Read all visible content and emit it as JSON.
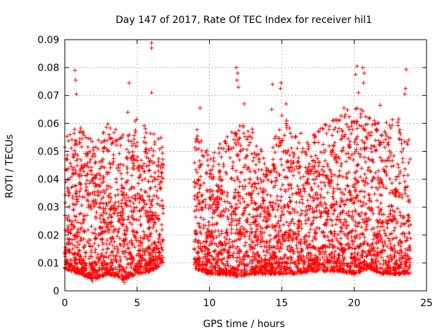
{
  "chart_data": {
    "type": "scatter",
    "title": "Day 147 of 2017, Rate Of TEC Index for receiver hil1",
    "xlabel": "GPS time / hours",
    "ylabel": "ROTI / TECUs",
    "xlim": [
      0,
      25
    ],
    "ylim": [
      0,
      0.09
    ],
    "xticks": [
      "0",
      "5",
      "10",
      "15",
      "20",
      "25"
    ],
    "xtick_values": [
      0,
      5,
      10,
      15,
      20,
      25
    ],
    "yticks": [
      "0",
      "0.01",
      "0.02",
      "0.03",
      "0.04",
      "0.05",
      "0.06",
      "0.07",
      "0.08",
      "0.09"
    ],
    "ytick_values": [
      0,
      0.01,
      0.02,
      0.03,
      0.04,
      0.05,
      0.06,
      0.07,
      0.08,
      0.09
    ],
    "grid": true,
    "marker": "plus",
    "color": "#ff0000",
    "series": [
      {
        "name": "ROTI hil1",
        "segments": [
          {
            "x_start": 0.0,
            "x_end": 6.8,
            "n": 1400
          },
          {
            "x_start": 8.95,
            "x_end": 23.9,
            "n": 2900
          }
        ],
        "envelope_x": [
          0,
          1,
          2,
          3,
          4,
          5,
          6,
          6.8,
          9,
          10,
          11,
          12,
          13,
          14,
          15,
          16,
          17,
          18,
          19,
          20,
          21,
          22,
          23,
          23.9
        ],
        "envelope_low": [
          0.008,
          0.006,
          0.004,
          0.006,
          0.004,
          0.006,
          0.007,
          0.01,
          0.008,
          0.006,
          0.006,
          0.005,
          0.006,
          0.006,
          0.006,
          0.006,
          0.007,
          0.007,
          0.007,
          0.006,
          0.008,
          0.006,
          0.006,
          0.006
        ],
        "envelope_high": [
          0.055,
          0.06,
          0.055,
          0.06,
          0.057,
          0.062,
          0.058,
          0.056,
          0.062,
          0.048,
          0.055,
          0.06,
          0.058,
          0.045,
          0.064,
          0.058,
          0.055,
          0.06,
          0.064,
          0.066,
          0.064,
          0.06,
          0.063,
          0.055
        ],
        "outliers": [
          {
            "x": 0.7,
            "y": 0.079
          },
          {
            "x": 0.75,
            "y": 0.0755
          },
          {
            "x": 0.8,
            "y": 0.0705
          },
          {
            "x": 4.45,
            "y": 0.0745
          },
          {
            "x": 6.0,
            "y": 0.0888
          },
          {
            "x": 6.0,
            "y": 0.087
          },
          {
            "x": 6.0,
            "y": 0.071
          },
          {
            "x": 11.85,
            "y": 0.08
          },
          {
            "x": 11.95,
            "y": 0.078
          },
          {
            "x": 11.9,
            "y": 0.0755
          },
          {
            "x": 12.0,
            "y": 0.073
          },
          {
            "x": 14.35,
            "y": 0.074
          },
          {
            "x": 14.95,
            "y": 0.0745
          },
          {
            "x": 14.9,
            "y": 0.0725
          },
          {
            "x": 20.2,
            "y": 0.0805
          },
          {
            "x": 20.6,
            "y": 0.08
          },
          {
            "x": 20.7,
            "y": 0.078
          },
          {
            "x": 20.1,
            "y": 0.0775
          },
          {
            "x": 20.3,
            "y": 0.071
          },
          {
            "x": 20.65,
            "y": 0.0745
          },
          {
            "x": 23.6,
            "y": 0.0793
          },
          {
            "x": 23.55,
            "y": 0.0725
          },
          {
            "x": 23.5,
            "y": 0.0705
          },
          {
            "x": 21.8,
            "y": 0.0665
          },
          {
            "x": 19.3,
            "y": 0.0655
          },
          {
            "x": 9.35,
            "y": 0.0655
          },
          {
            "x": 4.35,
            "y": 0.064
          },
          {
            "x": 14.3,
            "y": 0.065
          },
          {
            "x": 4.1,
            "y": 0.003
          },
          {
            "x": 1.9,
            "y": 0.0035
          },
          {
            "x": 15.3,
            "y": 0.067
          },
          {
            "x": 12.4,
            "y": 0.067
          }
        ]
      }
    ]
  }
}
